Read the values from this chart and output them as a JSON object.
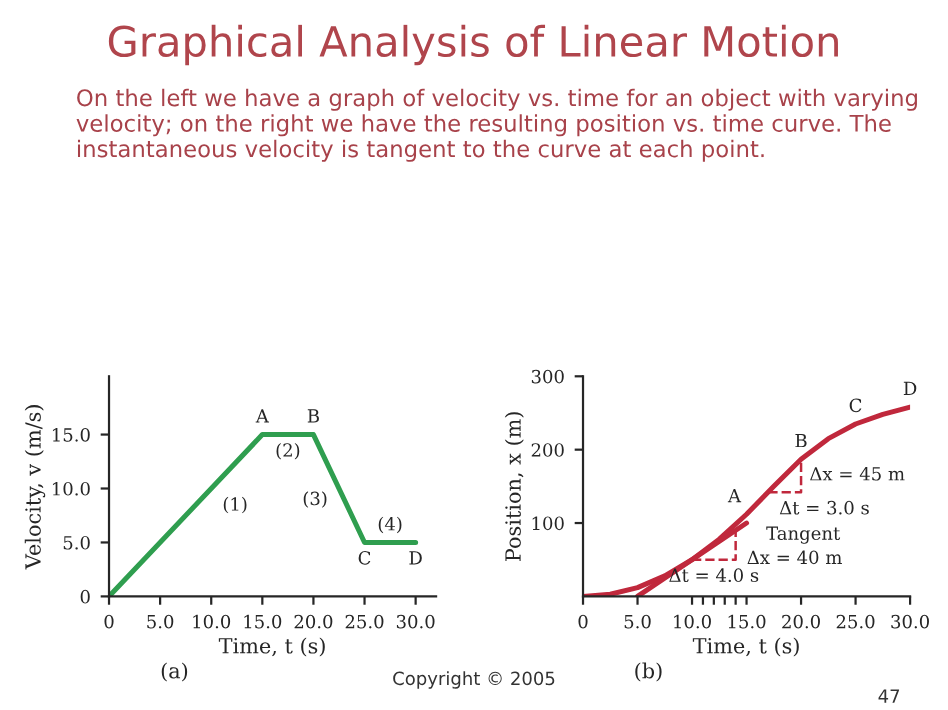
{
  "chart_data": [
    {
      "type": "line",
      "title": "Graphical Analysis of Linear Motion",
      "subtitle": "On the left we have a graph of velocity vs. time for an object with varying velocity; on the right we have the resulting position vs. time curve. The instantaneous velocity is tangent to the curve at each point.",
      "xlabel": "Time, t (s)",
      "ylabel": "Velocity, v (m/s)",
      "x": [
        0,
        15,
        20,
        25,
        30
      ],
      "series": [
        {
          "color": "#2f9e4f",
          "values": [
            0,
            15,
            15,
            5,
            5
          ]
        }
      ],
      "xlim": [
        0,
        32
      ],
      "ylim": [
        0,
        20.4
      ],
      "xticks": [
        0,
        {
          "value": 5,
          "label": "5.0"
        },
        {
          "value": 10,
          "label": "10.0"
        },
        {
          "value": 15,
          "label": "15.0"
        },
        {
          "value": 20,
          "label": "20.0"
        },
        {
          "value": 25,
          "label": "25.0"
        },
        {
          "value": 30,
          "label": "30.0"
        }
      ],
      "yticks": [
        0,
        {
          "value": 5,
          "label": "5.0"
        },
        {
          "value": 10,
          "label": "10.0"
        },
        {
          "value": 15,
          "label": "15.0"
        }
      ],
      "grid": false,
      "line_style": "solid",
      "annotations": [
        "(a)",
        {
          "text": "A",
          "x": 15,
          "y": 15
        },
        {
          "text": "B",
          "x": 20,
          "y": 15
        },
        {
          "text": "C",
          "x": 25,
          "y": 5
        },
        {
          "text": "D",
          "x": 30,
          "y": 5
        },
        {
          "text": "(1)",
          "x": 10,
          "y": 10
        },
        {
          "text": "(2)",
          "x": 17.5,
          "y": 15
        },
        {
          "text": "(3)",
          "x": 22.5,
          "y": 10
        },
        {
          "text": "(4)",
          "x": 27.5,
          "y": 5
        }
      ]
    },
    {
      "type": "line",
      "xlabel": "Time, t (s)",
      "ylabel": "Position, x (m)",
      "series": [
        {
          "color": "#c0283c",
          "x": [
            0,
            2.5,
            5,
            7.5,
            10,
            12.5,
            15,
            17.5,
            20,
            22.5,
            25,
            27.5,
            30
          ],
          "values": [
            0,
            3,
            12,
            28,
            50,
            78,
            112,
            150,
            187,
            215,
            235,
            248,
            258
          ]
        },
        {
          "color": "#c0283c",
          "x": [
            5,
            15
          ],
          "values": [
            0,
            100
          ]
        },
        {
          "color": "#c0283c",
          "x": [
            10,
            14,
            14
          ],
          "values": [
            50,
            50,
            90
          ],
          "line_style": "dashed"
        },
        {
          "color": "#c0283c",
          "x": [
            17,
            20,
            20
          ],
          "values": [
            142,
            142,
            187
          ],
          "line_style": "dashed"
        }
      ],
      "xlim": [
        0,
        30
      ],
      "ylim": [
        0,
        300
      ],
      "xticks": [
        0,
        {
          "value": 5,
          "label": "5.0"
        },
        {
          "value": 10,
          "label": "10.0"
        },
        {
          "value": 11,
          "label": null
        },
        {
          "value": 12,
          "label": null
        },
        {
          "value": 13,
          "label": null
        },
        {
          "value": 14,
          "label": null
        },
        {
          "value": 15,
          "label": "15.0"
        },
        {
          "value": 20,
          "label": "20.0"
        },
        {
          "value": 25,
          "label": "25.0"
        },
        {
          "value": 30,
          "label": "30.0"
        }
      ],
      "yticks": [
        100,
        200,
        300
      ],
      "grid": false,
      "line_style": "solid",
      "annotations": [
        "(b)",
        "Copyright © 2005",
        "47",
        {
          "text": "A",
          "x": 15,
          "y": 112
        },
        {
          "text": "B",
          "x": 20,
          "y": 187
        },
        {
          "text": "C",
          "x": 25,
          "y": 235
        },
        {
          "text": "D",
          "x": 30,
          "y": 258
        },
        {
          "text": "Tangent",
          "x": 14.5,
          "y": 95
        },
        {
          "text": "Δx = 40 m",
          "x": 14,
          "y": 70
        },
        {
          "text": "Δt = 4.0 s",
          "x": 12,
          "y": 50
        },
        {
          "text": "Δx = 45 m",
          "x": 20,
          "y": 165
        },
        {
          "text": "Δt = 3.0 s",
          "x": 18.5,
          "y": 142
        }
      ]
    }
  ]
}
